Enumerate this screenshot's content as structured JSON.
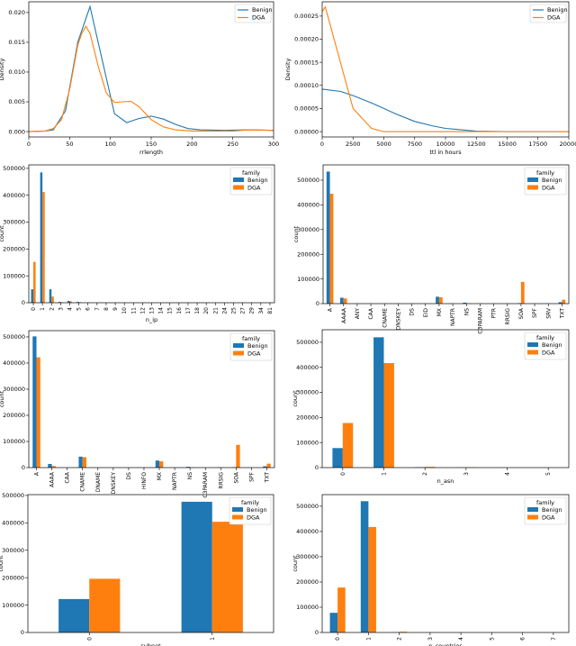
{
  "colors": {
    "benign": "#1f77b4",
    "dga": "#ff7f0e"
  },
  "chart_data": [
    {
      "id": "rrlength",
      "type": "line",
      "xlabel": "rrlength",
      "ylabel": "Density",
      "xlim": [
        0,
        300
      ],
      "ylim": [
        -0.0009,
        0.0218
      ],
      "xticks": [
        0,
        50,
        100,
        150,
        200,
        250,
        300
      ],
      "yticks": [
        0,
        0.005,
        0.01,
        0.015,
        0.02
      ],
      "ytick_decimals": 3,
      "legend": {
        "title": "",
        "placement": "top-right"
      },
      "series": [
        {
          "name": "Benign",
          "x": [
            0,
            20,
            30,
            45,
            60,
            75,
            90,
            105,
            120,
            135,
            150,
            165,
            180,
            195,
            210,
            240,
            270,
            300
          ],
          "y": [
            0,
            0.0001,
            0.0003,
            0.0035,
            0.015,
            0.021,
            0.012,
            0.003,
            0.0015,
            0.0022,
            0.0026,
            0.0021,
            0.0012,
            0.0005,
            0.0003,
            0.0002,
            0.0003,
            0.0002
          ]
        },
        {
          "name": "DGA",
          "x": [
            0,
            20,
            30,
            40,
            50,
            60,
            65,
            70,
            75,
            85,
            95,
            105,
            115,
            125,
            135,
            150,
            165,
            180,
            200,
            250,
            270,
            300
          ],
          "y": [
            0,
            0.0001,
            0.0005,
            0.002,
            0.007,
            0.0145,
            0.0165,
            0.0177,
            0.0165,
            0.011,
            0.0065,
            0.0049,
            0.005,
            0.0051,
            0.0042,
            0.002,
            0.0008,
            0.0003,
            0.0001,
            0.0001,
            0.0003,
            0.0002
          ]
        }
      ]
    },
    {
      "id": "ttl",
      "type": "line",
      "xlabel": "ttl in hours",
      "ylabel": "Density",
      "xlim": [
        0,
        20000
      ],
      "ylim": [
        -1.16e-05,
        0.000281
      ],
      "xticks": [
        0,
        2500,
        5000,
        7500,
        10000,
        12500,
        15000,
        17500,
        20000
      ],
      "yticks": [
        0,
        5e-05,
        0.0001,
        0.00015,
        0.0002,
        0.00025
      ],
      "ytick_decimals": 5,
      "legend": {
        "title": "",
        "placement": "top-right"
      },
      "series": [
        {
          "name": "Benign",
          "x": [
            0,
            1500,
            2500,
            4000,
            5000,
            6000,
            7500,
            9000,
            10000,
            12500,
            15000,
            20000
          ],
          "y": [
            9.2e-05,
            8.7e-05,
            7.8e-05,
            6.2e-05,
            5e-05,
            3.8e-05,
            2.2e-05,
            1.2e-05,
            7e-06,
            1e-06,
            0,
            0
          ]
        },
        {
          "name": "DGA",
          "x": [
            0,
            250,
            2500,
            4000,
            5000,
            20000
          ],
          "y": [
            0.00026,
            0.00027,
            5e-05,
            7e-06,
            0,
            0
          ]
        }
      ]
    },
    {
      "id": "n_ip",
      "type": "bar",
      "xlabel": "n_ip",
      "ylabel": "count",
      "ylim": [
        0,
        513000
      ],
      "yticks": [
        0,
        100000,
        200000,
        300000,
        400000,
        500000
      ],
      "legend": {
        "title": "family",
        "placement": "top-right"
      },
      "categories": [
        "0",
        "1",
        "2",
        "3",
        "4",
        "5",
        "6",
        "7",
        "8",
        "9",
        "10",
        "11",
        "12",
        "13",
        "14",
        "15",
        "16",
        "17",
        "18",
        "20",
        "21",
        "24",
        "25",
        "27",
        "29",
        "34",
        "81"
      ],
      "series": [
        {
          "name": "Benign",
          "values": [
            50000,
            485000,
            50000,
            3000,
            7000,
            3000,
            500,
            300,
            200,
            100,
            100,
            100,
            100,
            100,
            100,
            100,
            100,
            100,
            100,
            100,
            100,
            100,
            100,
            100,
            100,
            100,
            100
          ]
        },
        {
          "name": "DGA",
          "values": [
            152000,
            412000,
            23000,
            2000,
            5000,
            2000,
            300,
            200,
            100,
            100,
            100,
            100,
            100,
            100,
            100,
            100,
            100,
            100,
            100,
            100,
            100,
            100,
            100,
            100,
            100,
            100,
            100
          ]
        }
      ]
    },
    {
      "id": "qtype_a",
      "type": "bar",
      "xlabel": "",
      "ylabel": "count",
      "ylim": [
        0,
        562000
      ],
      "yticks": [
        0,
        100000,
        200000,
        300000,
        400000,
        500000
      ],
      "legend": {
        "title": "family",
        "placement": "top-right"
      },
      "categories": [
        "A",
        "AAAA",
        "ANY",
        "CAA",
        "CNAME",
        "DNSKEY",
        "DS",
        "EID",
        "MX",
        "NAPTR",
        "NS",
        "C3PARAM",
        "PTR",
        "RRSIG",
        "SOA",
        "SPF",
        "SRV",
        "TXT"
      ],
      "series": [
        {
          "name": "Benign",
          "values": [
            535000,
            24000,
            100,
            100,
            100,
            100,
            100,
            100,
            28000,
            100,
            4000,
            100,
            100,
            100,
            2000,
            100,
            100,
            6000
          ]
        },
        {
          "name": "DGA",
          "values": [
            445000,
            21000,
            100,
            100,
            100,
            100,
            100,
            100,
            26000,
            100,
            1000,
            100,
            100,
            100,
            88000,
            100,
            100,
            16000
          ]
        }
      ]
    },
    {
      "id": "qtype_b",
      "type": "bar",
      "xlabel": "",
      "ylabel": "count",
      "ylim": [
        0,
        524000
      ],
      "yticks": [
        0,
        100000,
        200000,
        300000,
        400000,
        500000
      ],
      "legend": {
        "title": "family",
        "placement": "top-right"
      },
      "categories": [
        "A",
        "AAAA",
        "CAA",
        "CNAME",
        "DNAME",
        "DNSKEY",
        "DS",
        "HINFO",
        "MX",
        "NAPTR",
        "NS",
        "C3PARAM",
        "RRSIG",
        "SOA",
        "SPF",
        "TXT"
      ],
      "series": [
        {
          "name": "Benign",
          "values": [
            502000,
            14000,
            100,
            42000,
            100,
            100,
            100,
            100,
            27000,
            100,
            3000,
            100,
            1000,
            1500,
            100,
            5000
          ]
        },
        {
          "name": "DGA",
          "values": [
            422000,
            6000,
            100,
            40000,
            100,
            100,
            100,
            100,
            24000,
            100,
            1000,
            100,
            1000,
            87000,
            100,
            15000
          ]
        }
      ]
    },
    {
      "id": "n_asn",
      "type": "bar",
      "xlabel": "n_asn",
      "ylabel": "count",
      "ylim": [
        0,
        550000
      ],
      "yticks": [
        0,
        100000,
        200000,
        300000,
        400000,
        500000
      ],
      "legend": {
        "title": "family",
        "placement": "top-right"
      },
      "categories": [
        "0",
        "1",
        "2",
        "3",
        "4",
        "5"
      ],
      "series": [
        {
          "name": "Benign",
          "values": [
            78000,
            520000,
            1500,
            500,
            200,
            100
          ]
        },
        {
          "name": "DGA",
          "values": [
            178000,
            417000,
            3000,
            1000,
            200,
            100
          ]
        }
      ]
    },
    {
      "id": "subnet",
      "type": "bar",
      "xlabel": "subnet",
      "ylabel": "count",
      "ylim": [
        0,
        503000
      ],
      "yticks": [
        0,
        100000,
        200000,
        300000,
        400000,
        500000
      ],
      "legend": {
        "title": "family",
        "placement": "top-right"
      },
      "categories": [
        "0",
        "1"
      ],
      "series": [
        {
          "name": "Benign",
          "values": [
            122000,
            477000
          ]
        },
        {
          "name": "DGA",
          "values": [
            196000,
            404000
          ]
        }
      ]
    },
    {
      "id": "n_countries",
      "type": "bar",
      "xlabel": "n_countries",
      "ylabel": "count",
      "ylim": [
        0,
        546000
      ],
      "yticks": [
        0,
        100000,
        200000,
        300000,
        400000,
        500000
      ],
      "legend": {
        "title": "family",
        "placement": "top-right"
      },
      "categories": [
        "0",
        "1",
        "2",
        "3",
        "4",
        "5",
        "6",
        "7"
      ],
      "series": [
        {
          "name": "Benign",
          "values": [
            78000,
            520000,
            500,
            200,
            100,
            100,
            100,
            100
          ]
        },
        {
          "name": "DGA",
          "values": [
            178000,
            418000,
            3000,
            300,
            100,
            100,
            100,
            100
          ]
        }
      ]
    }
  ]
}
